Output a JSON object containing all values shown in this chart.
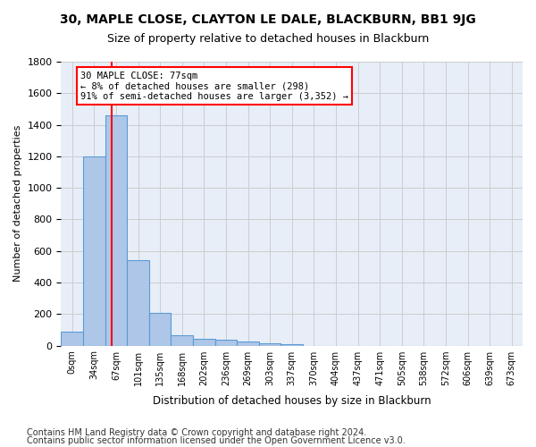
{
  "title1": "30, MAPLE CLOSE, CLAYTON LE DALE, BLACKBURN, BB1 9JG",
  "title2": "Size of property relative to detached houses in Blackburn",
  "xlabel": "Distribution of detached houses by size in Blackburn",
  "ylabel": "Number of detached properties",
  "footer1": "Contains HM Land Registry data © Crown copyright and database right 2024.",
  "footer2": "Contains public sector information licensed under the Open Government Licence v3.0.",
  "annotation_line1": "30 MAPLE CLOSE: 77sqm",
  "annotation_line2": "← 8% of detached houses are smaller (298)",
  "annotation_line3": "91% of semi-detached houses are larger (3,352) →",
  "bar_values": [
    90,
    1200,
    1460,
    540,
    205,
    65,
    45,
    35,
    28,
    15,
    8,
    0,
    0,
    0,
    0,
    0,
    0,
    0,
    0,
    0,
    0
  ],
  "bar_color": "#aec6e8",
  "bar_edge_color": "#5b9bd5",
  "categories": [
    "0sqm",
    "34sqm",
    "67sqm",
    "101sqm",
    "135sqm",
    "168sqm",
    "202sqm",
    "236sqm",
    "269sqm",
    "303sqm",
    "337sqm",
    "370sqm",
    "404sqm",
    "437sqm",
    "471sqm",
    "505sqm",
    "538sqm",
    "572sqm",
    "606sqm",
    "639sqm",
    "673sqm"
  ],
  "ylim": [
    0,
    1800
  ],
  "yticks": [
    0,
    200,
    400,
    600,
    800,
    1000,
    1200,
    1400,
    1600,
    1800
  ],
  "background_color": "#e8eef8",
  "grid_color": "#cccccc",
  "title1_fontsize": 10,
  "title2_fontsize": 9,
  "footer_fontsize": 7
}
